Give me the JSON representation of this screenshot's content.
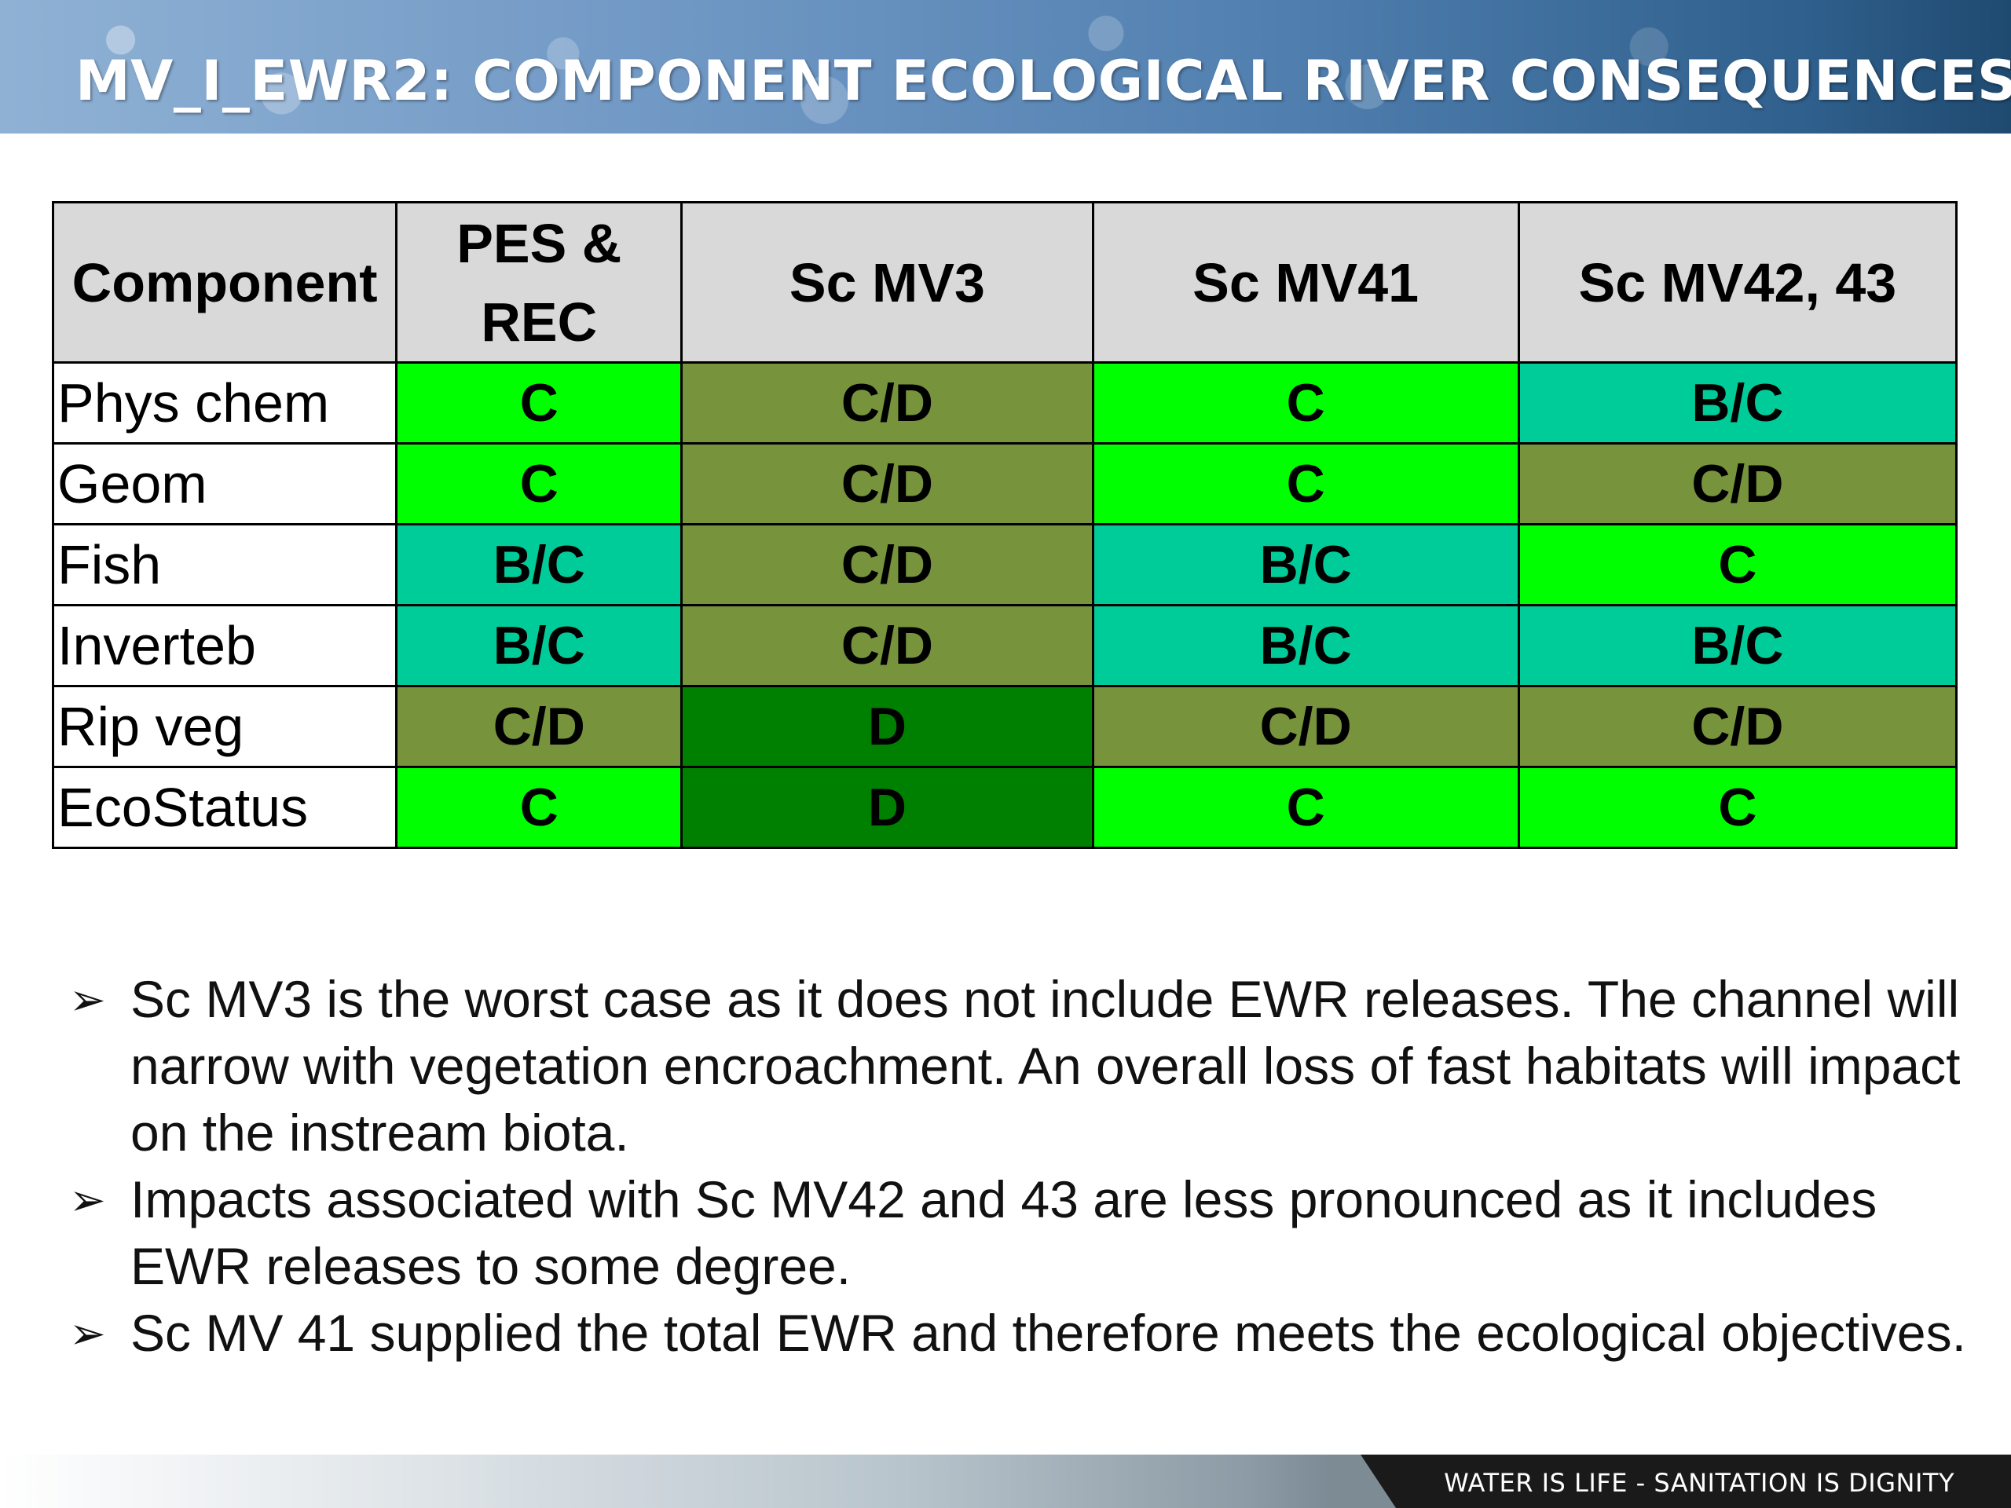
{
  "header": {
    "title": "MV_I_EWR2: COMPONENT ECOLOGICAL RIVER CONSEQUENCES"
  },
  "table": {
    "headers": [
      "Component",
      "PES & REC",
      "Sc MV3",
      "Sc MV41",
      "Sc MV42, 43"
    ],
    "rows": [
      {
        "component": "Phys chem",
        "cells": [
          "C",
          "C/D",
          "C",
          "B/C"
        ]
      },
      {
        "component": "Geom",
        "cells": [
          "C",
          "C/D",
          "C",
          "C/D"
        ]
      },
      {
        "component": "Fish",
        "cells": [
          "B/C",
          "C/D",
          "B/C",
          "C"
        ]
      },
      {
        "component": "Inverteb",
        "cells": [
          "B/C",
          "C/D",
          "B/C",
          "B/C"
        ]
      },
      {
        "component": "Rip veg",
        "cells": [
          "C/D",
          "D",
          "C/D",
          "C/D"
        ]
      },
      {
        "component": "EcoStatus",
        "cells": [
          "C",
          "D",
          "C",
          "C"
        ]
      }
    ],
    "grade_colors": {
      "C": "#00ff00",
      "C/D": "#77933c",
      "B/C": "#00cc99",
      "D": "#008000"
    }
  },
  "notes": {
    "bullet_icon": "arrow-bullet-icon",
    "items": [
      "Sc MV3 is the worst case as it does not include EWR releases.  The channel will narrow with vegetation encroachment. An overall loss of fast habitats will impact on the instream biota.",
      "Impacts associated with Sc MV42 and 43 are less pronounced as it includes EWR releases to some degree.",
      "Sc MV 41 supplied the total EWR and therefore meets the ecological objectives."
    ]
  },
  "footer": {
    "slogan": "WATER IS LIFE - SANITATION IS DIGNITY"
  }
}
